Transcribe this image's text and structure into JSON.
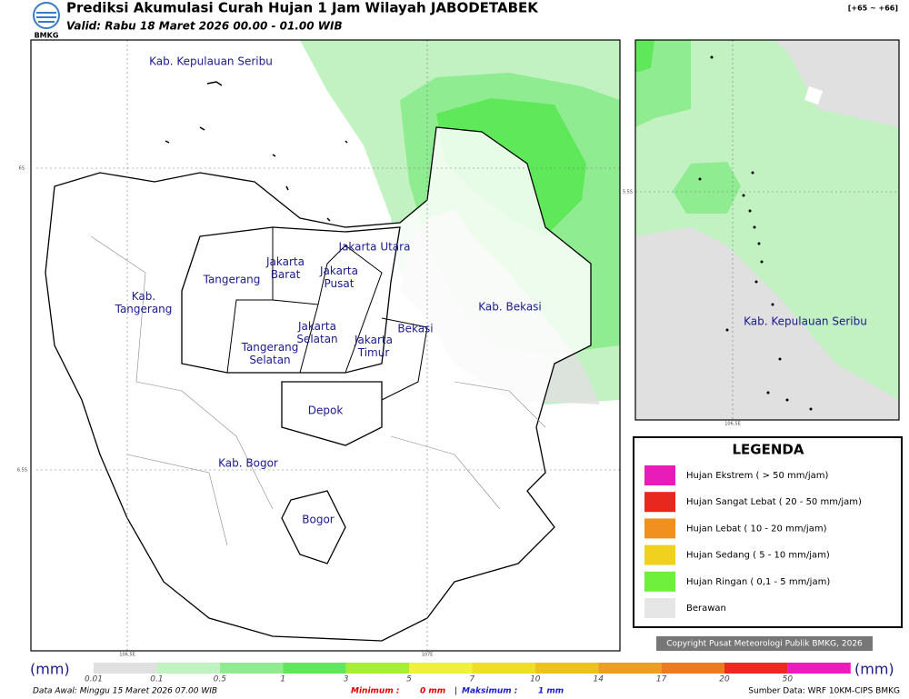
{
  "header": {
    "logo": "BMKG",
    "title": "Prediksi Akumulasi Curah Hujan 1 Jam Wilayah JABODETABEK",
    "valid": "Valid: Rabu 18 Maret 2026 00.00 - 01.00 WIB",
    "code": "[+65 ~ +66]"
  },
  "main_map": {
    "regions": [
      "Kab. Kepulauan Seribu",
      "Jakarta Utara",
      "Jakarta\nBarat",
      "Jakarta\nPusat",
      "Tangerang",
      "Kab.\nTangerang",
      "Jakarta\nSelatan",
      "Jakarta\nTimur",
      "Bekasi",
      "Kab. Bekasi",
      "Tangerang\nSelatan",
      "Depok",
      "Kab. Bogor",
      "Bogor"
    ],
    "grid_labels": [
      "6S",
      "6.5S",
      "106.5E",
      "107E"
    ]
  },
  "inset_map": {
    "regions": [
      "Kab. Kepulauan Seribu"
    ],
    "grid_labels": [
      "5.5S",
      "106.5E"
    ]
  },
  "legend": {
    "title": "LEGENDA",
    "entries": [
      {
        "label": "Hujan Ekstrem ( > 50 mm/jam)",
        "color": "#e81cb8"
      },
      {
        "label": "Hujan Sangat Lebat ( 20 - 50 mm/jam)",
        "color": "#e8281e"
      },
      {
        "label": "Hujan Lebat ( 10 - 20 mm/jam)",
        "color": "#f0901e"
      },
      {
        "label": "Hujan Sedang ( 5 - 10 mm/jam)",
        "color": "#f0d21e"
      },
      {
        "label": "Hujan Ringan ( 0,1 - 5 mm/jam)",
        "color": "#6ef03c"
      },
      {
        "label": "Berawan",
        "color": "#e6e6e6"
      }
    ]
  },
  "copyright": "Copyright Pusat Meteorologi Publik BMKG, 2026",
  "colorbar": {
    "unit_left": "(mm)",
    "unit_right": "(mm)",
    "labels": [
      "0.01",
      "0.1",
      "0.5",
      "1",
      "3",
      "5",
      "7",
      "10",
      "14",
      "17",
      "20",
      "50"
    ],
    "colors": [
      "#e0e0e0",
      "#c2f2c2",
      "#90ec90",
      "#5ee85a",
      "#a6ee34",
      "#eef23c",
      "#eede28",
      "#eec21e",
      "#ee9e1e",
      "#ee7a1e",
      "#ea2a1e",
      "#ea1cc0"
    ]
  },
  "footer": {
    "data_awal": "Data Awal: Minggu 15 Maret 2026 07.00 WIB",
    "min_label": "Minimum :",
    "min_value": "0 mm",
    "sep": "|",
    "max_label": "Maksimum :",
    "max_value": "1 mm",
    "source": "Sumber Data: WRF 10KM-CIPS BMKG"
  }
}
